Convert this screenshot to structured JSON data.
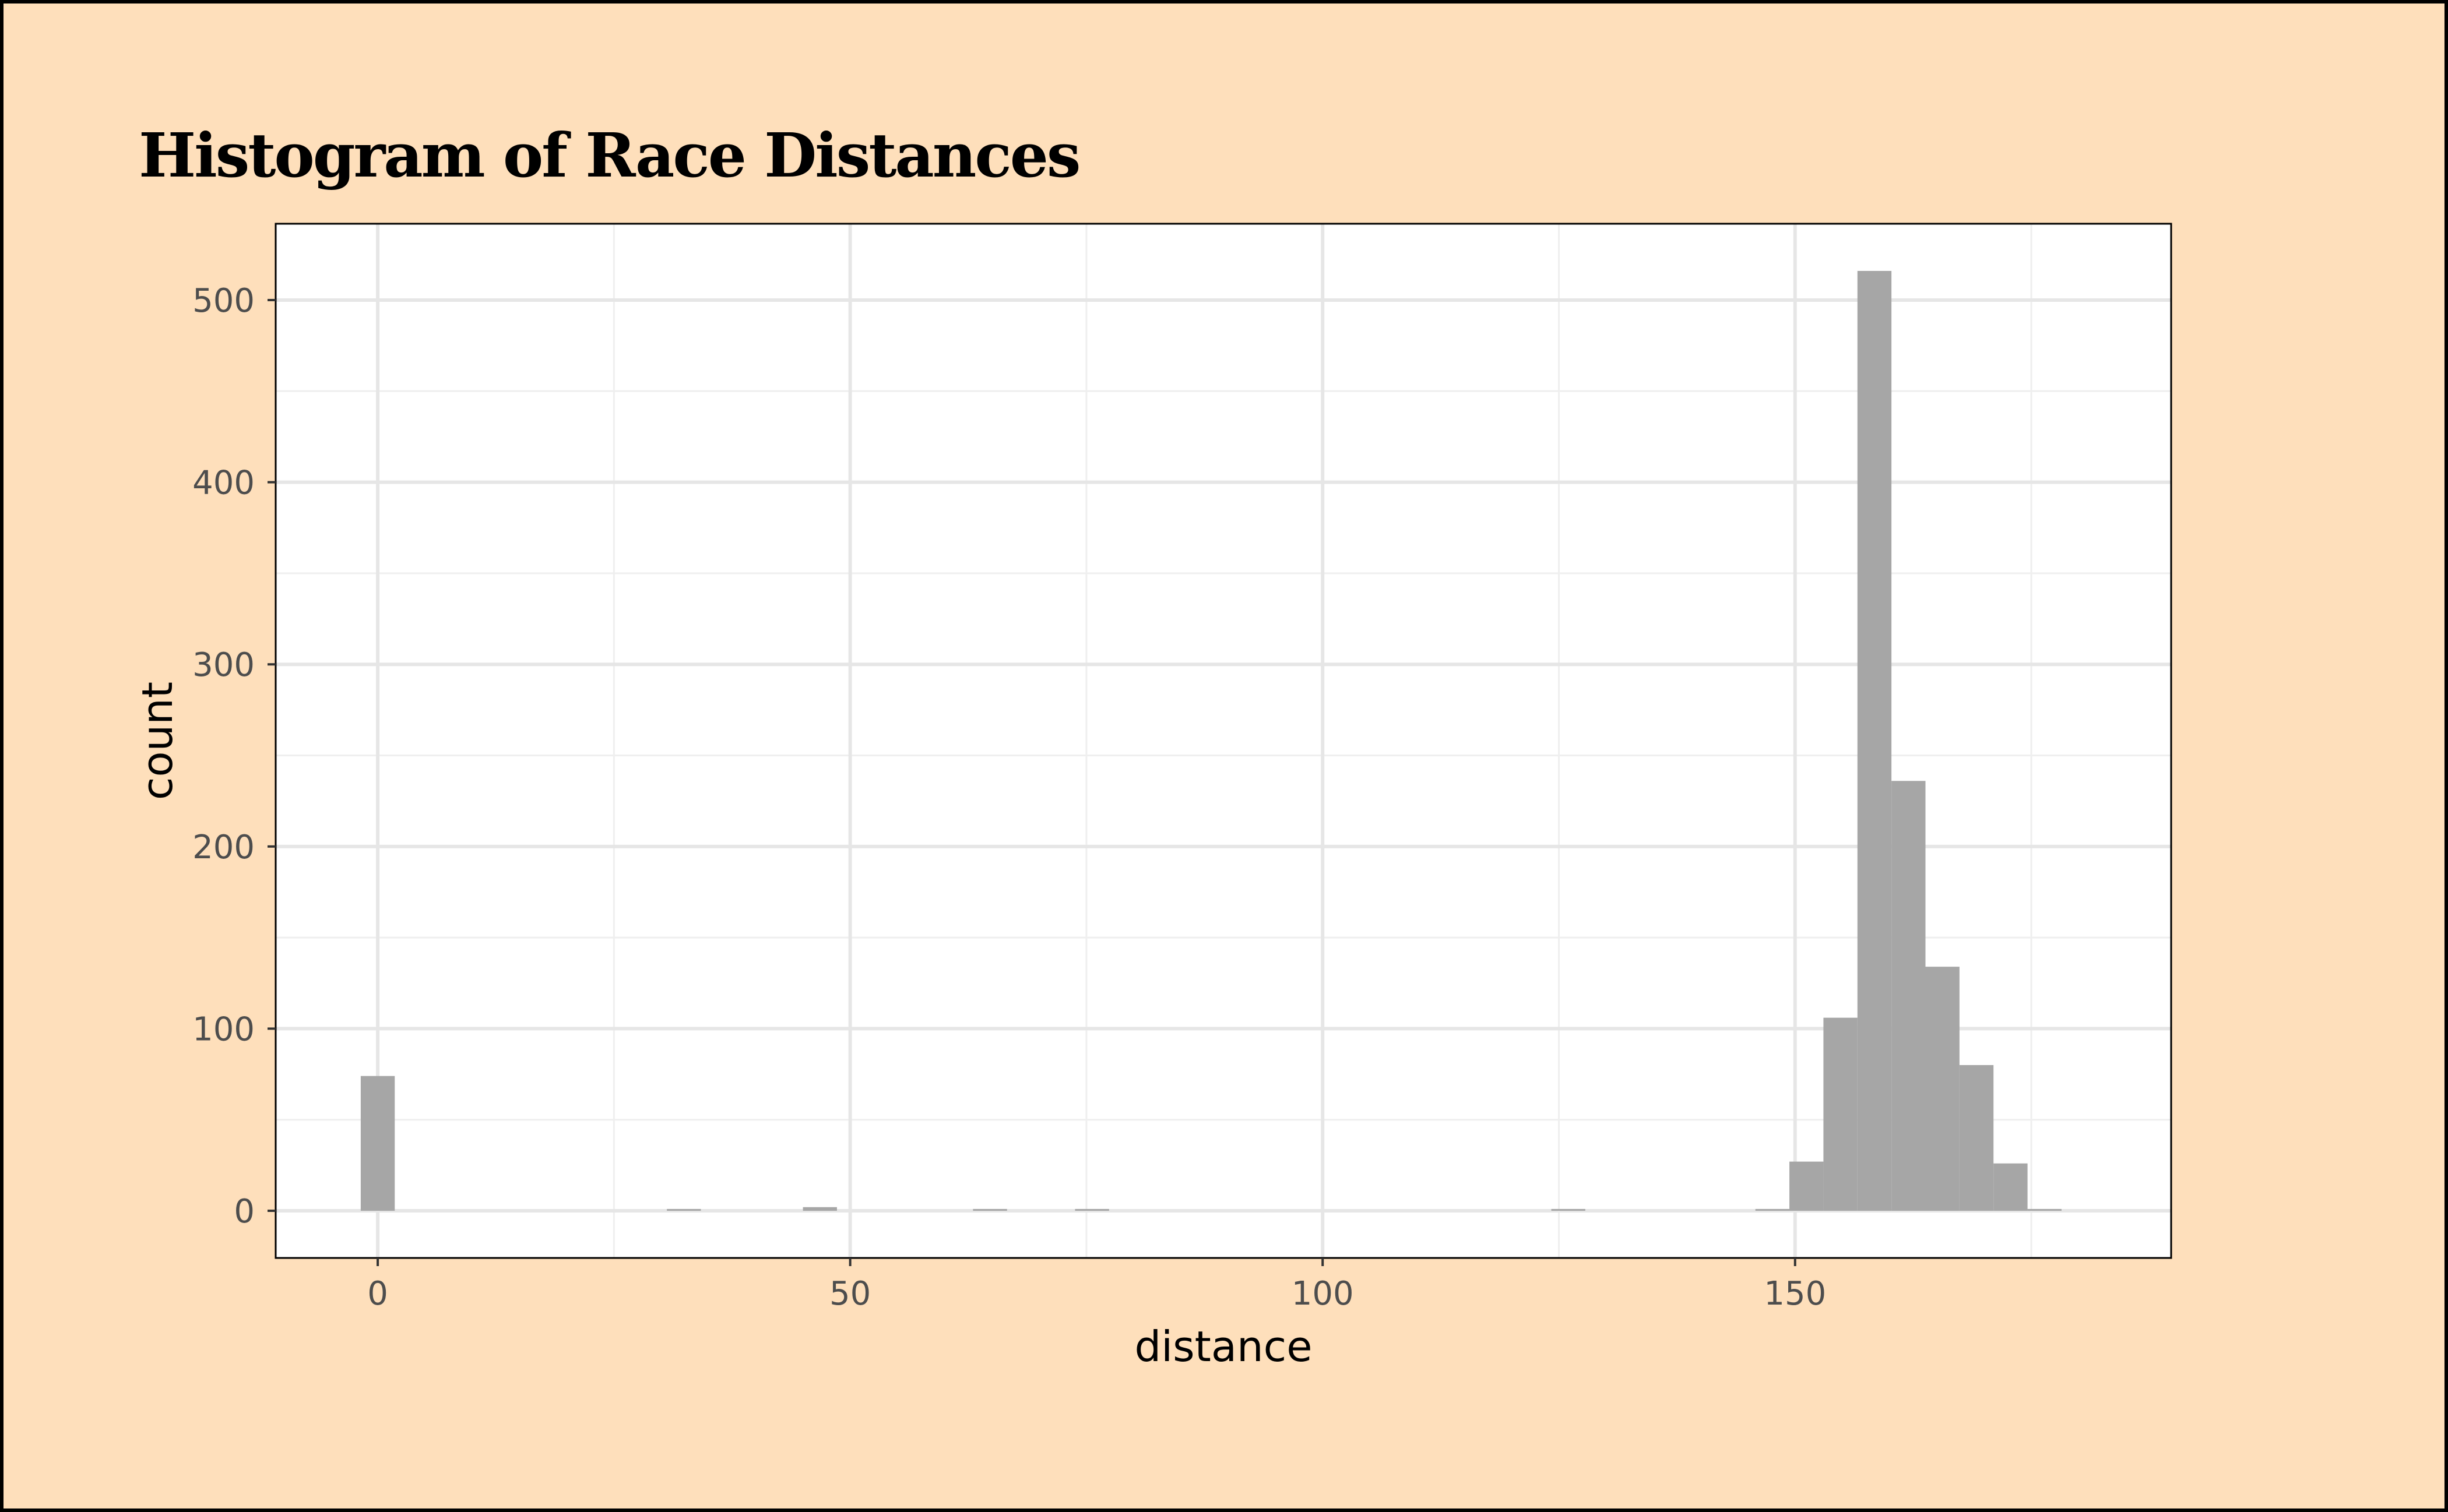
{
  "chart_data": {
    "type": "histogram",
    "title": "Histogram of Race Distances",
    "xlabel": "distance",
    "ylabel": "count",
    "xlim": [
      -10.8,
      189.8
    ],
    "ylim": [
      -25.9,
      541.9
    ],
    "x_ticks": [
      0,
      50,
      100,
      150
    ],
    "x_minor_ticks": [
      25,
      75,
      125,
      175
    ],
    "y_ticks": [
      0,
      100,
      200,
      300,
      400,
      500
    ],
    "y_minor_ticks": [
      50,
      150,
      250,
      350,
      450
    ],
    "grid": true,
    "bin_width": 3.6,
    "bins": [
      {
        "x": 0.0,
        "count": 74
      },
      {
        "x": 32.4,
        "count": 1
      },
      {
        "x": 46.8,
        "count": 2
      },
      {
        "x": 64.8,
        "count": 1
      },
      {
        "x": 75.6,
        "count": 1
      },
      {
        "x": 126.0,
        "count": 1
      },
      {
        "x": 147.6,
        "count": 1
      },
      {
        "x": 151.2,
        "count": 27
      },
      {
        "x": 154.8,
        "count": 106
      },
      {
        "x": 158.4,
        "count": 516
      },
      {
        "x": 162.0,
        "count": 236
      },
      {
        "x": 165.6,
        "count": 134
      },
      {
        "x": 169.2,
        "count": 80
      },
      {
        "x": 172.8,
        "count": 26
      },
      {
        "x": 176.4,
        "count": 1
      }
    ],
    "colors": {
      "background": "#fedfbb",
      "panel": "#ffffff",
      "bar": "#a6a6a6",
      "grid_major": "#e6e6e6",
      "grid_minor": "#efefef",
      "panel_border": "#000000"
    }
  }
}
